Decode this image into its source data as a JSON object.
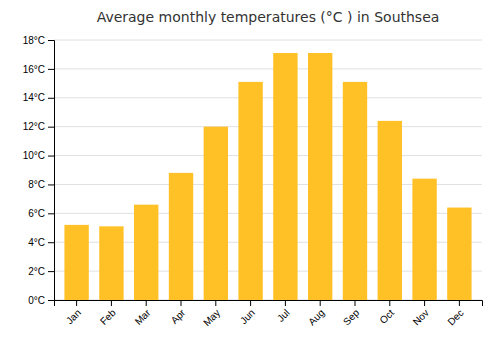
{
  "chart_data": {
    "type": "bar",
    "title": "Average monthly temperatures (°C ) in Southsea",
    "categories": [
      "Jan",
      "Feb",
      "Mar",
      "Apr",
      "May",
      "Jun",
      "Jul",
      "Aug",
      "Sep",
      "Oct",
      "Nov",
      "Dec"
    ],
    "values": [
      5.2,
      5.1,
      6.6,
      8.8,
      12.0,
      15.1,
      17.1,
      17.1,
      15.1,
      12.4,
      8.4,
      6.4
    ],
    "color": "#FFC125",
    "ylim": [
      0,
      18
    ],
    "yticks": [
      {
        "value": 0,
        "label": "0°C"
      },
      {
        "value": 2,
        "label": "2°C"
      },
      {
        "value": 4,
        "label": "4°C"
      },
      {
        "value": 6,
        "label": "6°C"
      },
      {
        "value": 8,
        "label": "8°C"
      },
      {
        "value": 10,
        "label": "10°C"
      },
      {
        "value": 12,
        "label": "12°C"
      },
      {
        "value": 14,
        "label": "14°C"
      },
      {
        "value": 16,
        "label": "16°C"
      },
      {
        "value": 18,
        "label": "18°C"
      }
    ],
    "grid": true
  }
}
